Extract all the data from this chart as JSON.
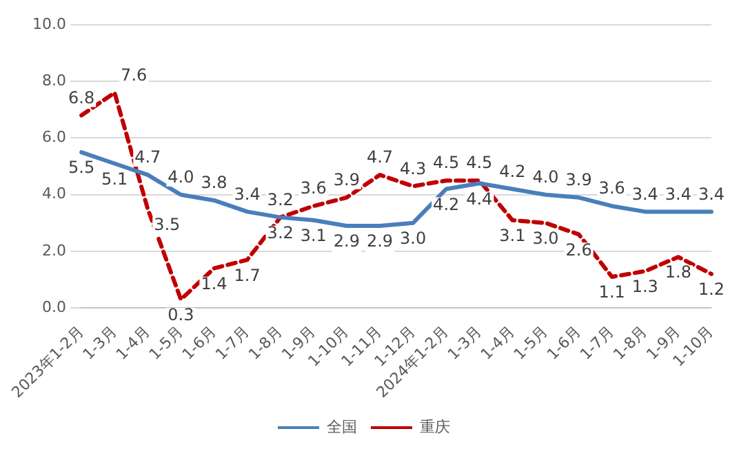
{
  "chart_data": {
    "type": "line",
    "categories": [
      "2023年1-2月",
      "1-3月",
      "1-4月",
      "1-5月",
      "1-6月",
      "1-7月",
      "1-8月",
      "1-9月",
      "1-10月",
      "1-11月",
      "1-12月",
      "2024年1-2月",
      "1-3月",
      "1-4月",
      "1-5月",
      "1-6月",
      "1-7月",
      "1-8月",
      "1-9月",
      "1-10月"
    ],
    "series": [
      {
        "name": "全国",
        "color": "#4a7ebb",
        "line_style": "solid",
        "values": [
          5.5,
          5.1,
          4.7,
          4.0,
          3.8,
          3.4,
          3.2,
          3.1,
          2.9,
          2.9,
          3.0,
          4.2,
          4.4,
          4.2,
          4.0,
          3.9,
          3.6,
          3.4,
          3.4,
          3.4
        ],
        "value_labels": [
          "5.5",
          "5.1",
          "4.7",
          "4.0",
          "3.8",
          "3.4",
          "3.2",
          "3.1",
          "2.9",
          "2.9",
          "3.0",
          "4.2",
          "4.4",
          "4.2",
          "4.0",
          "3.9",
          "3.6",
          "3.4",
          "3.4",
          "3.4"
        ]
      },
      {
        "name": "重庆",
        "color": "#c00000",
        "line_style": "dashed",
        "values": [
          6.8,
          7.6,
          3.5,
          0.3,
          1.4,
          1.7,
          3.2,
          3.6,
          3.9,
          4.7,
          4.3,
          4.5,
          4.5,
          3.1,
          3.0,
          2.6,
          1.1,
          1.3,
          1.8,
          1.2
        ],
        "value_labels": [
          "6.8",
          "7.6",
          "3.5",
          "0.3",
          "1.4",
          "1.7",
          "3.2",
          "3.6",
          "3.9",
          "4.7",
          "4.3",
          "4.5",
          "4.5",
          "3.1",
          "3.0",
          "2.6",
          "1.1",
          "1.3",
          "1.8",
          "1.2"
        ]
      }
    ],
    "ylim": [
      0,
      10
    ],
    "yticks": [
      {
        "value": 0,
        "label": "0.0"
      },
      {
        "value": 2,
        "label": "2.0"
      },
      {
        "value": 4,
        "label": "4.0"
      },
      {
        "value": 6,
        "label": "6.0"
      },
      {
        "value": 8,
        "label": "8.0"
      },
      {
        "value": 10,
        "label": "10.0"
      }
    ],
    "grid": "y",
    "legend": "bottom",
    "marker": "none"
  }
}
